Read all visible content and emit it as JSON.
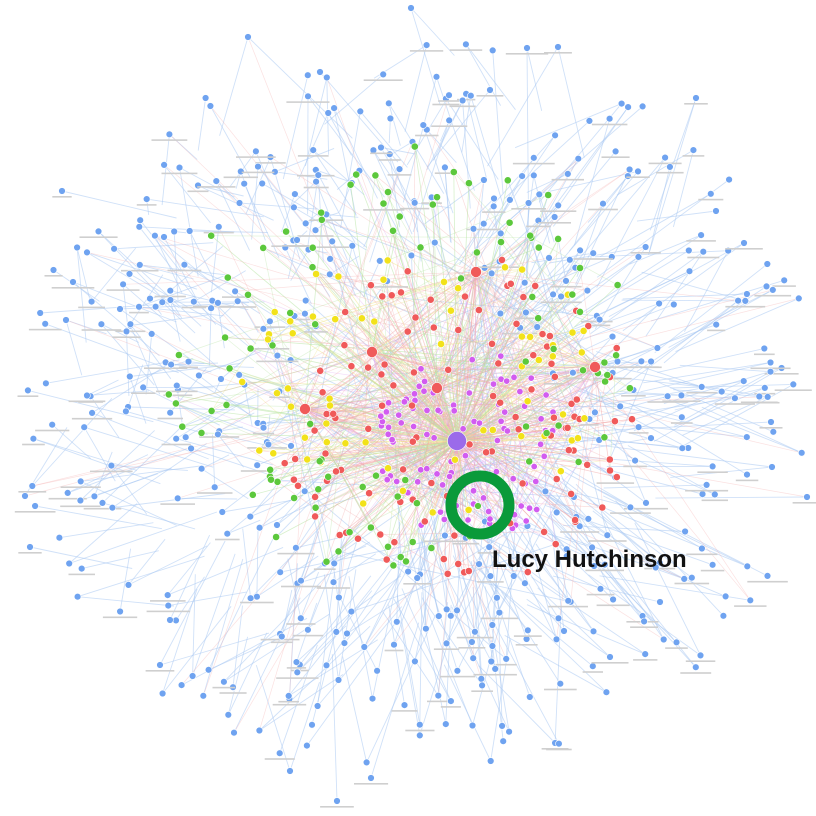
{
  "graph": {
    "focus_node": {
      "label": "Lucy Hutchinson",
      "ring_color": "#0a9a3a"
    },
    "hub_color": "#9b6bea",
    "community_colors": {
      "outer": "#6fa3f0",
      "green": "#5cc83c",
      "yellow": "#f2e21a",
      "red": "#f05a5a",
      "purple": "#d25cf0"
    },
    "edge_colors": {
      "outer": "#a9c8f2",
      "green": "#b7e3a3",
      "yellow": "#f1e58c",
      "red": "#f3a9a9",
      "purple": "#e2a9f2"
    }
  }
}
